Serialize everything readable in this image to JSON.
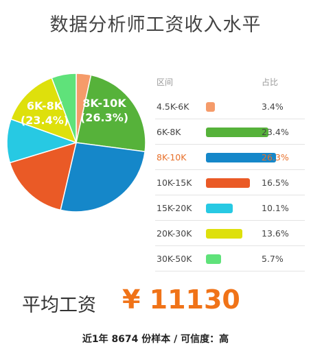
{
  "title": "数据分析师工资收入水平",
  "legend_header": {
    "range": "区间",
    "share": "占比"
  },
  "chart_data": {
    "type": "pie",
    "title": "数据分析师工资收入水平",
    "slices": [
      {
        "label": "4.5K-6K",
        "value": 3.4,
        "value_text": "3.4%",
        "color": "#f59b6a"
      },
      {
        "label": "6K-8K",
        "value": 23.4,
        "value_text": "23.4%",
        "color": "#56b23a",
        "inner_label": "6K-8K",
        "inner_value": "(23.4%)"
      },
      {
        "label": "8K-10K",
        "value": 26.3,
        "value_text": "26.3%",
        "color": "#1587c9",
        "inner_label": "8K-10K",
        "inner_value": "(26.3%)",
        "highlight": true
      },
      {
        "label": "10K-15K",
        "value": 16.5,
        "value_text": "16.5%",
        "color": "#ea5a26"
      },
      {
        "label": "15K-20K",
        "value": 10.1,
        "value_text": "10.1%",
        "color": "#27c9e3"
      },
      {
        "label": "20K-30K",
        "value": 13.6,
        "value_text": "13.6%",
        "color": "#dee00c"
      },
      {
        "label": "30K-50K",
        "value": 5.7,
        "value_text": "5.7%",
        "color": "#5fe27a"
      }
    ]
  },
  "average": {
    "label": "平均工资",
    "value": "¥ 11130"
  },
  "footer": "近1年 8674 份样本 / 可信度：高"
}
